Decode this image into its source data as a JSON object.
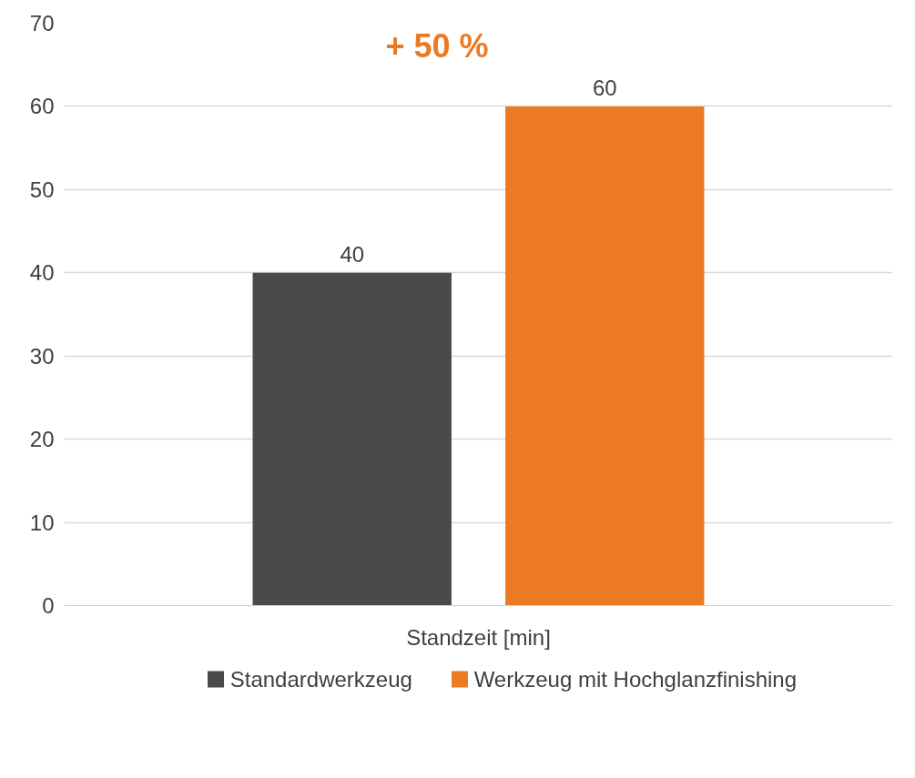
{
  "chart_data": {
    "type": "bar",
    "categories": [
      "Standzeit [min]"
    ],
    "series": [
      {
        "name": "Standardwerkzeug",
        "color": "#4a4a4a",
        "values": [
          40
        ]
      },
      {
        "name": "Werkzeug mit Hochglanzfinishing",
        "color": "#ec7a23",
        "values": [
          60
        ]
      }
    ],
    "ylim": [
      0,
      70
    ],
    "yticks": [
      0,
      10,
      20,
      30,
      40,
      50,
      60,
      70
    ],
    "grid": "y",
    "legend": "bottom",
    "data_labels": true,
    "annotations": [
      "+ 50 %"
    ]
  }
}
